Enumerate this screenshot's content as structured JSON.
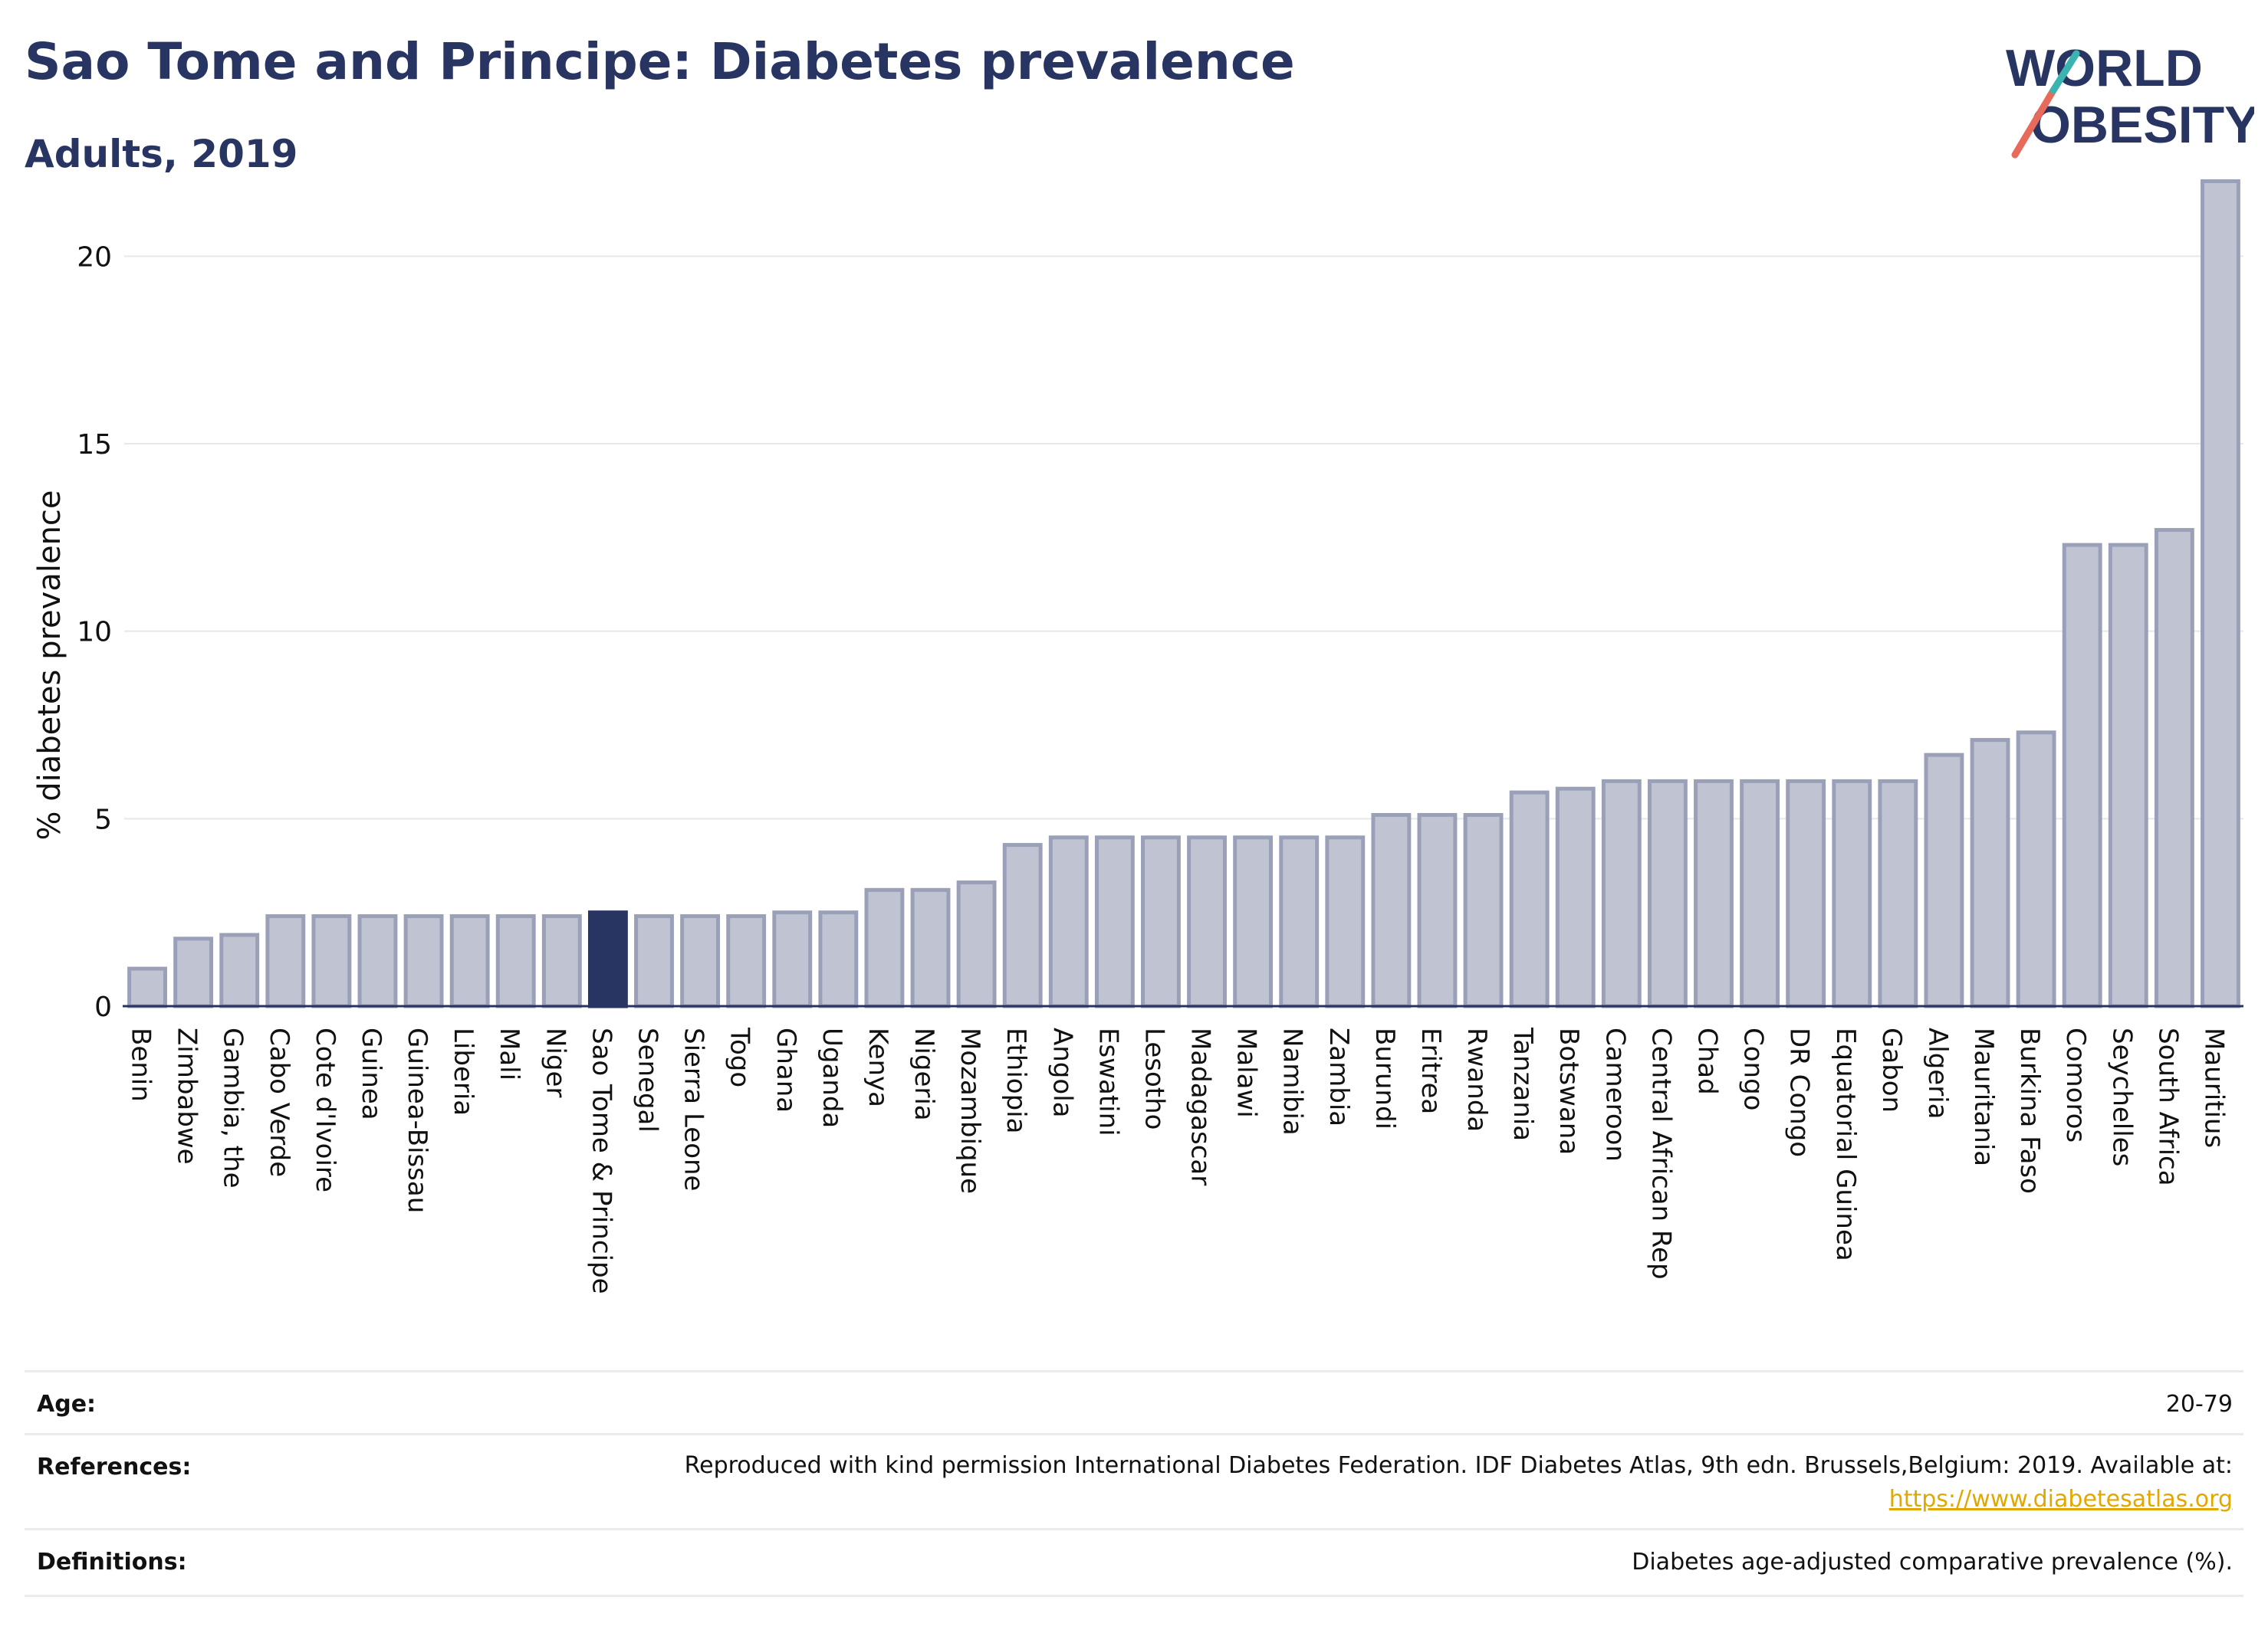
{
  "header": {
    "title": "Sao Tome and Principe: Diabetes prevalence",
    "subtitle": "Adults, 2019",
    "logo_line1": "WORLD",
    "logo_line2": "OBESITY"
  },
  "chart_data": {
    "type": "bar",
    "title": "Sao Tome and Principe: Diabetes prevalence",
    "subtitle": "Adults, 2019",
    "ylabel": "% diabetes prevalence",
    "xlabel": "",
    "ylim": [
      0,
      22.5
    ],
    "yticks": [
      0,
      5,
      10,
      15,
      20
    ],
    "grid": true,
    "highlight": "Sao Tome & Principe",
    "colors": {
      "bar": "#c0c3d2",
      "bar_border": "#9aa0b8",
      "highlight": "#283462",
      "grid": "#e6e8ee",
      "axis": "#283462"
    },
    "categories": [
      "Benin",
      "Zimbabwe",
      "Gambia, the",
      "Cabo Verde",
      "Cote d'Ivoire",
      "Guinea",
      "Guinea-Bissau",
      "Liberia",
      "Mali",
      "Niger",
      "Sao Tome & Principe",
      "Senegal",
      "Sierra Leone",
      "Togo",
      "Ghana",
      "Uganda",
      "Kenya",
      "Nigeria",
      "Mozambique",
      "Ethiopia",
      "Angola",
      "Eswatini",
      "Lesotho",
      "Madagascar",
      "Malawi",
      "Namibia",
      "Zambia",
      "Burundi",
      "Eritrea",
      "Rwanda",
      "Tanzania",
      "Botswana",
      "Cameroon",
      "Central African Rep",
      "Chad",
      "Congo",
      "DR Congo",
      "Equatorial Guinea",
      "Gabon",
      "Algeria",
      "Mauritania",
      "Burkina Faso",
      "Comoros",
      "Seychelles",
      "South Africa",
      "Mauritius"
    ],
    "values": [
      1.0,
      1.8,
      1.9,
      2.4,
      2.4,
      2.4,
      2.4,
      2.4,
      2.4,
      2.4,
      2.5,
      2.4,
      2.4,
      2.4,
      2.5,
      2.5,
      3.1,
      3.1,
      3.3,
      4.3,
      4.5,
      4.5,
      4.5,
      4.5,
      4.5,
      4.5,
      4.5,
      5.1,
      5.1,
      5.1,
      5.7,
      5.8,
      6.0,
      6.0,
      6.0,
      6.0,
      6.0,
      6.0,
      6.0,
      6.7,
      7.1,
      7.3,
      12.3,
      12.3,
      12.7,
      22.0
    ]
  },
  "meta": {
    "age_label": "Age:",
    "age_value": "20-79",
    "references_label": "References:",
    "references_value": "Reproduced with kind permission International Diabetes Federation. IDF Diabetes Atlas, 9th edn. Brussels,Belgium: 2019. Available at:",
    "references_link": "https://www.diabetesatlas.org",
    "definitions_label": "Definitions:",
    "definitions_value": "Diabetes age-adjusted comparative prevalence (%)."
  }
}
